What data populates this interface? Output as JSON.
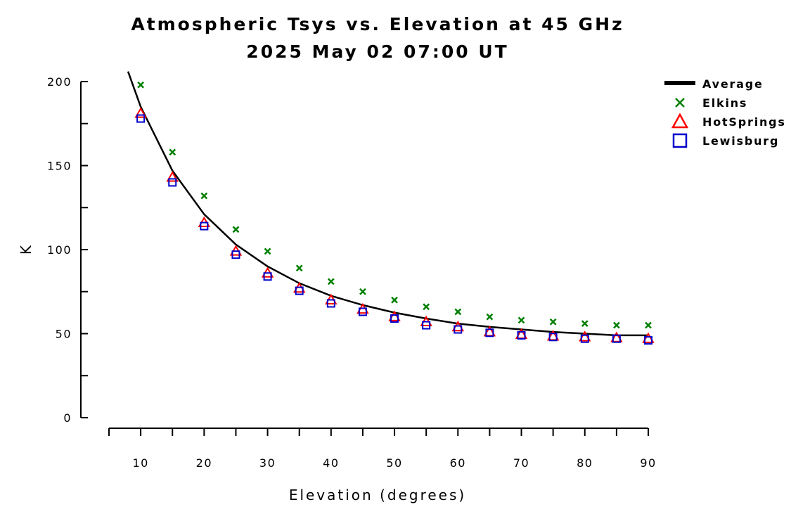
{
  "chart_data": {
    "type": "scatter",
    "title": "Atmospheric Tsys vs. Elevation at 45 GHz",
    "subtitle": "2025 May 02 07:00 UT",
    "xlabel": "Elevation (degrees)",
    "ylabel": "K",
    "xlim": [
      5,
      90
    ],
    "ylim": [
      0,
      200
    ],
    "x_ticks": [
      10,
      20,
      30,
      40,
      50,
      60,
      70,
      80,
      90
    ],
    "y_ticks": [
      0,
      50,
      100,
      150,
      200
    ],
    "grid": false,
    "legend_position": "top-right",
    "x": [
      10,
      15,
      20,
      25,
      30,
      35,
      40,
      45,
      50,
      55,
      60,
      65,
      70,
      75,
      80,
      85,
      90
    ],
    "series": [
      {
        "name": "Average",
        "kind": "line",
        "color": "#000000",
        "x": [
          8,
          10,
          15,
          20,
          25,
          30,
          35,
          40,
          45,
          50,
          55,
          60,
          65,
          70,
          75,
          80,
          85,
          90
        ],
        "values": [
          206,
          185,
          147,
          121,
          103,
          90,
          80,
          72.5,
          67,
          62.5,
          59,
          56,
          54,
          52.5,
          51,
          50,
          49,
          49
        ]
      },
      {
        "name": "Elkins",
        "kind": "marker",
        "marker": "x",
        "color": "#008000",
        "values": [
          198,
          158,
          132,
          112,
          99,
          89,
          81,
          75,
          70,
          66,
          63,
          60,
          58,
          57,
          56,
          55,
          55
        ]
      },
      {
        "name": "HotSprings",
        "kind": "marker",
        "marker": "triangle",
        "color": "#ff0000",
        "values": [
          181,
          143,
          116,
          99,
          86,
          77,
          70,
          64.5,
          60,
          57,
          54,
          51,
          49.5,
          48.5,
          48,
          47.5,
          47
        ]
      },
      {
        "name": "Lewisburg",
        "kind": "marker",
        "marker": "square",
        "color": "#0000cc",
        "values": [
          178,
          140,
          114,
          97,
          84,
          75.5,
          68,
          63,
          59,
          55,
          52.5,
          50.5,
          49,
          48,
          47,
          47,
          46
        ]
      }
    ]
  }
}
